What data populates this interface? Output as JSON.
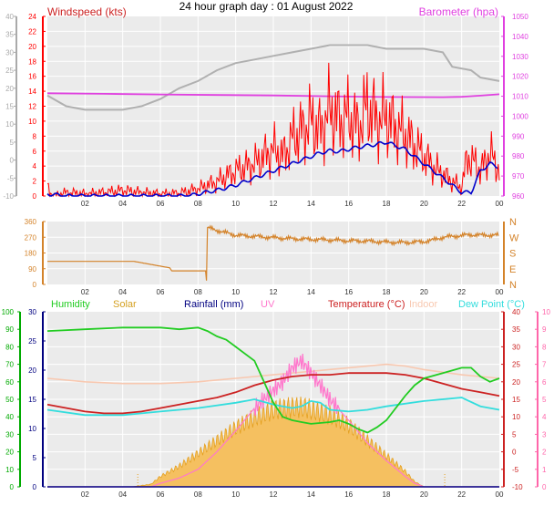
{
  "title": "24 hour graph day : 01 August 2022",
  "colors": {
    "plot_bg": "#ebebeb",
    "grid": "#ffffff",
    "axis_text": "#333333",
    "wind_gust": "#ff0000",
    "wind_avg": "#0000cc",
    "barometer": "#e040e0",
    "barometer_prev": "#b0b0b0",
    "wind_dir": "#d4832a",
    "humidity": "#22cc22",
    "solar_fill": "#f5c060",
    "solar_line": "#e4a020",
    "rainfall": "#000080",
    "uv": "#ff77cc",
    "temperature": "#cc2222",
    "indoor": "#f8c8b0",
    "dew_point": "#33dddd",
    "left_axis1": "#aaaaaa",
    "left_axis2": "#00aa00",
    "right_axis2": "#ff66aa"
  },
  "chart_data": [
    {
      "type": "line",
      "x_ticks": [
        "02",
        "04",
        "06",
        "08",
        "10",
        "12",
        "14",
        "16",
        "18",
        "20",
        "22",
        "00"
      ],
      "y_left": {
        "label": "Windspeed (kts)",
        "ticks": [
          "0",
          "2",
          "4",
          "6",
          "8",
          "10",
          "12",
          "14",
          "16",
          "18",
          "20",
          "22",
          "24"
        ],
        "ylim": [
          0,
          25
        ]
      },
      "y_left_outer": {
        "ticks": [
          "-10",
          "-5",
          "0",
          "5",
          "10",
          "15",
          "20",
          "25",
          "30",
          "35",
          "40"
        ],
        "ylim": [
          -10,
          42
        ]
      },
      "y_right": {
        "label": "Barometer (hpa)",
        "ticks": [
          "960",
          "970",
          "980",
          "990",
          "1000",
          "1010",
          "1020",
          "1030",
          "1040",
          "1050"
        ],
        "ylim": [
          960,
          1050
        ]
      },
      "series": [
        {
          "name": "Barometer (hpa)",
          "axis": "right",
          "x": [
            0,
            3,
            6,
            9,
            12,
            15,
            18,
            21,
            22,
            23,
            24
          ],
          "values": [
            1011.5,
            1011.2,
            1010.9,
            1010.6,
            1010.4,
            1010.0,
            1009.6,
            1009.5,
            1009.7,
            1010.3,
            1011.0
          ]
        },
        {
          "x": [
            0,
            1,
            2,
            4,
            5,
            6,
            7,
            8,
            9,
            10,
            11,
            12,
            13,
            14,
            15,
            16,
            17,
            18,
            19,
            20,
            21,
            21.5,
            22.5,
            23,
            24
          ],
          "values": [
            14,
            12.5,
            12,
            12,
            12.5,
            13.5,
            15,
            16,
            17.5,
            18.5,
            19,
            19.5,
            20,
            20.5,
            21,
            21,
            21,
            20.5,
            20.5,
            20.5,
            20,
            18,
            17.5,
            16.5,
            16
          ]
        },
        {
          "x": [
            0,
            0.3,
            1,
            2,
            3,
            4,
            5,
            6,
            7,
            8,
            9,
            10,
            11,
            12,
            12.5,
            13,
            13.5,
            14,
            14.5,
            15,
            15.5,
            16,
            16.5,
            17,
            17.5,
            18,
            18.5,
            19,
            19.5,
            20,
            20.5,
            21,
            21.5,
            22,
            22.3,
            22.7,
            23,
            23.5,
            24
          ],
          "values": [
            1.2,
            0,
            0.5,
            0.3,
            0.5,
            0.8,
            0.5,
            0.3,
            0.4,
            1,
            2,
            3.5,
            4.5,
            6.5,
            5.5,
            8,
            9,
            10.5,
            9,
            12,
            10.5,
            11,
            9.5,
            12.5,
            10.5,
            11,
            9.5,
            8.5,
            7,
            5.5,
            4,
            3,
            2,
            1.2,
            5.5,
            4.5,
            3.5,
            6,
            3.5
          ]
        },
        {
          "x": [
            0,
            1,
            2,
            3,
            4,
            5,
            6,
            7,
            7.5,
            8,
            9,
            10,
            11,
            12,
            13,
            14,
            14.5,
            15,
            15.5,
            16,
            16.5,
            17,
            17.5,
            18,
            18.5,
            19,
            19.5,
            20,
            20.5,
            21,
            21.5,
            22,
            22.5,
            23,
            23.5,
            24
          ],
          "values": [
            0.3,
            0,
            0,
            0,
            0,
            0,
            0,
            0,
            0,
            0.3,
            0.8,
            1.5,
            2.5,
            3.5,
            4.5,
            5.5,
            6,
            6.3,
            6.2,
            6.5,
            6.8,
            7,
            7.2,
            7.5,
            7,
            6.5,
            5.5,
            4.5,
            3.5,
            2.5,
            1.5,
            0.5,
            0.5,
            3.5,
            4.5,
            4
          ]
        }
      ]
    },
    {
      "type": "line",
      "x_ticks": [
        "02",
        "04",
        "06",
        "08",
        "10",
        "12",
        "14",
        "16",
        "18",
        "20",
        "22",
        "00"
      ],
      "y_left": {
        "ticks": [
          "0",
          "90",
          "180",
          "270",
          "360"
        ],
        "ylim": [
          0,
          360
        ]
      },
      "y_right": {
        "ticks": [
          "N",
          "E",
          "S",
          "W",
          "N"
        ]
      },
      "series": [
        {
          "x": [
            0,
            4.5,
            4.6,
            6.5,
            6.6,
            8.4,
            8.45,
            8.5,
            9,
            9.5,
            10,
            11,
            12,
            13,
            14,
            15,
            16,
            17,
            18,
            19,
            20,
            20.5,
            21,
            21.5,
            22,
            22.5,
            23,
            24
          ],
          "values": [
            132,
            132,
            132,
            95,
            78,
            78,
            22,
            325,
            310,
            295,
            282,
            275,
            268,
            262,
            258,
            255,
            250,
            248,
            242,
            240,
            245,
            255,
            270,
            275,
            280,
            285,
            282,
            282
          ]
        }
      ]
    },
    {
      "type": "line",
      "x_ticks": [
        "02",
        "04",
        "06",
        "08",
        "10",
        "12",
        "14",
        "16",
        "18",
        "20",
        "22",
        "00"
      ],
      "y_left": {
        "label": "Rainfall (mm)",
        "ticks": [
          "0",
          "5",
          "10",
          "15",
          "20",
          "25",
          "30"
        ],
        "ylim": [
          0,
          30
        ]
      },
      "y_left_outer": {
        "label": "Humidity",
        "ticks": [
          "0",
          "10",
          "20",
          "30",
          "40",
          "50",
          "60",
          "70",
          "80",
          "90",
          "100"
        ],
        "ylim": [
          0,
          100
        ]
      },
      "y_right": {
        "label": "Temperature (°C)",
        "ticks": [
          "-10",
          "-5",
          "0",
          "5",
          "10",
          "15",
          "20",
          "25",
          "30",
          "35",
          "40"
        ],
        "ylim": [
          -10,
          40
        ]
      },
      "y_right_outer": {
        "label": "UV",
        "ticks": [
          "0",
          "1",
          "2",
          "3",
          "4",
          "5",
          "6",
          "7",
          "8",
          "9",
          "10"
        ],
        "ylim": [
          0,
          10
        ]
      },
      "legend": [
        "Humidity",
        "Solar",
        "Rainfall (mm)",
        "UV",
        "Temperature (°C)",
        "Indoor",
        "Dew Point (°C)"
      ],
      "series": [
        {
          "name": "Humidity",
          "axis": "left_outer",
          "x": [
            0,
            2,
            4,
            5,
            6,
            7,
            8,
            8.5,
            9,
            9.5,
            10,
            11,
            11.5,
            12,
            12.5,
            13,
            13.5,
            14,
            15,
            15.5,
            16,
            16.5,
            17,
            17.5,
            18,
            19,
            19.5,
            20,
            21,
            22,
            22.5,
            23,
            23.5,
            24
          ],
          "values": [
            89,
            90,
            91,
            91,
            91,
            90,
            91,
            89,
            86,
            84,
            80,
            72,
            60,
            48,
            40,
            38,
            37,
            36,
            37,
            38,
            36,
            33,
            31,
            34,
            38,
            52,
            58,
            62,
            65,
            68,
            68,
            63,
            60,
            62
          ]
        },
        {
          "name": "Temperature (°C)",
          "axis": "right",
          "x": [
            0,
            2,
            3,
            4,
            5,
            6,
            7,
            8,
            9,
            10,
            11,
            12,
            13,
            14,
            15,
            16,
            17,
            18,
            19,
            20,
            21,
            22,
            23,
            24
          ],
          "values": [
            13.5,
            11.5,
            11,
            11,
            11.5,
            12.5,
            13.5,
            14.5,
            15.5,
            17,
            19,
            20.5,
            21.5,
            22,
            22,
            22.5,
            22.5,
            22.5,
            22,
            21,
            19.5,
            18,
            17,
            16
          ]
        },
        {
          "name": "Indoor",
          "axis": "right",
          "x": [
            0,
            2,
            4,
            6,
            8,
            10,
            12,
            14,
            16,
            18,
            19,
            20,
            22,
            24
          ],
          "values": [
            21,
            20,
            19.5,
            19.5,
            20,
            21,
            22,
            23,
            24,
            25,
            24.5,
            23.5,
            22,
            21
          ]
        },
        {
          "name": "Dew Point (°C)",
          "axis": "right",
          "x": [
            0,
            2,
            4,
            5,
            6,
            8,
            10,
            11,
            12,
            12.5,
            13,
            13.5,
            14,
            14.5,
            15,
            16,
            17,
            18,
            20,
            22,
            23,
            24
          ],
          "values": [
            12,
            10.5,
            10.5,
            11,
            11.5,
            12.5,
            14,
            15,
            13.5,
            13,
            12.5,
            13,
            14.5,
            14,
            12,
            11.5,
            12,
            13,
            14.5,
            15.5,
            13,
            12
          ]
        },
        {
          "name": "Solar",
          "axis": "left",
          "x": [
            0,
            4.5,
            5.5,
            6,
            7,
            8,
            9,
            10,
            11,
            12,
            13,
            13.7,
            14,
            15,
            16,
            17,
            18,
            19,
            19.5,
            20,
            24
          ],
          "values": [
            0,
            0,
            0.5,
            2,
            4,
            6.5,
            9,
            11.5,
            13.5,
            15,
            15.5,
            15.5,
            15,
            14,
            12,
            9,
            6,
            3,
            1,
            0,
            0
          ]
        },
        {
          "name": "UV",
          "axis": "right_outer",
          "x": [
            0,
            5.5,
            6,
            7,
            8,
            9,
            10,
            11,
            12,
            12.5,
            13,
            13.5,
            14,
            14.5,
            15,
            16,
            17,
            18,
            19,
            19.5,
            20,
            24
          ],
          "values": [
            0,
            0,
            0.2,
            0.5,
            1,
            2,
            3.2,
            4.5,
            5.5,
            6,
            6.8,
            7.2,
            6.5,
            5.8,
            5,
            3.8,
            2.5,
            1.5,
            0.6,
            0.2,
            0,
            0
          ]
        },
        {
          "name": "Rainfall (mm)",
          "axis": "left",
          "x": [
            0,
            24
          ],
          "values": [
            0,
            0
          ]
        }
      ]
    }
  ]
}
